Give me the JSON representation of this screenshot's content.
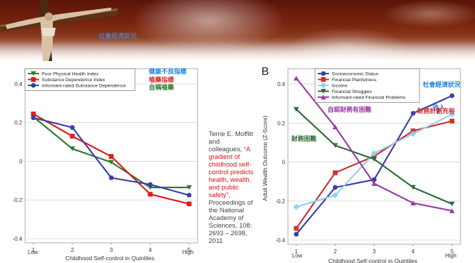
{
  "slide_title": "社會經濟狀況",
  "citation": {
    "author": "Terrie E. Moffitt and colleagues,",
    "title": "“A gradient of childhood self-control predicts health, wealth, and public safety”,",
    "source": "Proceedings of the National Academy of Sciences, 108: 2693 – 2698, 2011"
  },
  "chart_data": [
    {
      "type": "line",
      "xlabel": "Childhood Self-control in Quintiles",
      "ylabel": "",
      "x": [
        1,
        2,
        3,
        4,
        5
      ],
      "xticks": [
        "1",
        "2",
        "3",
        "4",
        "5"
      ],
      "x_end_labels": [
        "Low",
        "High"
      ],
      "ylim": [
        -0.4,
        0.45
      ],
      "yticks": [
        0.4,
        0.2,
        0,
        -0.2,
        -0.4
      ],
      "ytick_labels": [
        "0.4",
        "0.2",
        "0",
        "-0.2",
        "-0.4"
      ],
      "grid": "horizontal",
      "legend": "top-left",
      "series": [
        {
          "name": "Poor Physical Health Index",
          "color": "#2e7d32",
          "marker": "triangle-down",
          "values": [
            0.23,
            0.065,
            -0.005,
            -0.135,
            -0.135
          ]
        },
        {
          "name": "Substance Dependence Index",
          "color": "#dd1c1c",
          "marker": "square",
          "values": [
            0.245,
            0.13,
            0.025,
            -0.17,
            -0.22
          ]
        },
        {
          "name": "Informant-rated Substance Dependence",
          "color": "#3b3fa8",
          "marker": "circle",
          "values": [
            0.225,
            0.175,
            -0.085,
            -0.12,
            -0.175
          ]
        }
      ],
      "annotations": [
        {
          "text": "健康不良指標",
          "color": "#1e88e5"
        },
        {
          "text": "嗑藥指標",
          "color": "#d32f2f"
        },
        {
          "text": "自稱嗑藥",
          "color": "#2e7d32"
        }
      ]
    },
    {
      "type": "line",
      "panel_label": "B",
      "xlabel": "Childhood Self-control in Quintiles",
      "ylabel": "Adult Wealth Outcome (Z-Score)",
      "x": [
        1,
        2,
        3,
        4,
        5
      ],
      "xticks": [
        "1",
        "2",
        "3",
        "4",
        "5"
      ],
      "x_end_labels": [
        "Low",
        "High"
      ],
      "ylim": [
        -0.4,
        0.45
      ],
      "yticks": [
        0.4,
        0.2,
        0,
        -0.2,
        -0.4
      ],
      "ytick_labels": [
        "0.4",
        "0.2",
        "0",
        "-0.2",
        "-0.4"
      ],
      "grid": "horizontal",
      "legend": "top-left",
      "series": [
        {
          "name": "Socioeconomic Status",
          "color": "#3b3fa8",
          "marker": "circle",
          "values": [
            -0.37,
            -0.13,
            -0.09,
            0.25,
            0.34
          ]
        },
        {
          "name": "Financial Planfulness",
          "color": "#d32f2f",
          "marker": "square",
          "values": [
            -0.34,
            -0.055,
            0.03,
            0.16,
            0.21
          ]
        },
        {
          "name": "Income",
          "color": "#8fd4ef",
          "marker": "diamond",
          "values": [
            -0.23,
            -0.17,
            0.045,
            0.145,
            0.245
          ]
        },
        {
          "name": "Financial Struggles",
          "color": "#2e6b36",
          "marker": "triangle-down",
          "values": [
            0.27,
            0.085,
            0.015,
            -0.13,
            -0.215
          ]
        },
        {
          "name": "Informant-rated Financial Problems",
          "color": "#9b3aa7",
          "marker": "triangle-up",
          "values": [
            0.43,
            0.18,
            -0.11,
            -0.21,
            -0.25
          ]
        }
      ],
      "annotations": [
        {
          "text": "社會經濟狀況",
          "color": "#1e88e5"
        },
        {
          "text": "收入",
          "color": "#1e88e5"
        },
        {
          "text": "自認財務有困難",
          "color": "#9b3aa7"
        },
        {
          "text": "財務困難",
          "color": "#2e6b36"
        },
        {
          "text": "財務計劃充裕",
          "color": "#d32f2f"
        }
      ]
    }
  ]
}
